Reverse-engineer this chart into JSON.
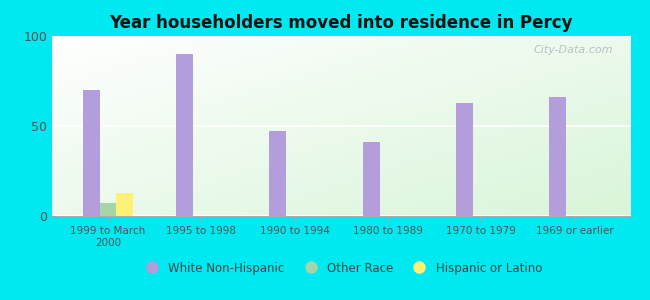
{
  "title": "Year householders moved into residence in Percy",
  "categories": [
    "1999 to March\n2000",
    "1995 to 1998",
    "1990 to 1994",
    "1980 to 1989",
    "1970 to 1979",
    "1969 or earlier"
  ],
  "white_non_hispanic": [
    70,
    90,
    47,
    41,
    63,
    66
  ],
  "other_race": [
    7,
    0,
    0,
    0,
    0,
    0
  ],
  "hispanic_or_latino": [
    13,
    0,
    0,
    0,
    0,
    0
  ],
  "bar_width": 0.18,
  "bar_color_white": "#b39ddb",
  "bar_color_other": "#a5d6a7",
  "bar_color_hispanic": "#fff176",
  "ylim": [
    0,
    100
  ],
  "yticks": [
    0,
    50,
    100
  ],
  "bg_color": "#00e8f0",
  "watermark": "City-Data.com",
  "legend_labels": [
    "White Non-Hispanic",
    "Other Race",
    "Hispanic or Latino"
  ]
}
